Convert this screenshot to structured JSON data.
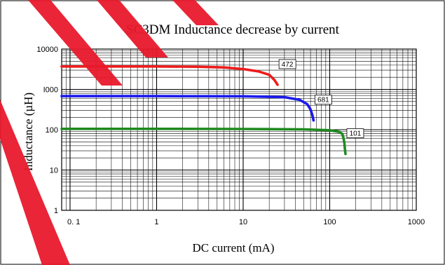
{
  "chart_data": {
    "type": "line",
    "title": "SC3DM Inductance decrease by current",
    "xlabel": "DC current (mA)",
    "ylabel": "Inductance (µH)",
    "x_scale": "log",
    "y_scale": "log",
    "xlim": [
      0.08,
      1000
    ],
    "ylim": [
      1,
      10000
    ],
    "x_ticks": [
      {
        "value": 0.1,
        "label": "0. 1"
      },
      {
        "value": 1,
        "label": "1"
      },
      {
        "value": 10,
        "label": "10"
      },
      {
        "value": 100,
        "label": "100"
      },
      {
        "value": 1000,
        "label": "1000"
      }
    ],
    "y_ticks": [
      {
        "value": 1,
        "label": "1"
      },
      {
        "value": 10,
        "label": "10"
      },
      {
        "value": 100,
        "label": "100"
      },
      {
        "value": 1000,
        "label": "I000"
      },
      {
        "value": 10000,
        "label": "10000"
      }
    ],
    "grid": true,
    "series": [
      {
        "name": "472",
        "color": "#ee1c1c",
        "x": [
          0.08,
          1,
          3,
          6,
          10,
          15,
          20,
          23,
          25
        ],
        "y": [
          3700,
          3700,
          3650,
          3500,
          3200,
          2800,
          2300,
          1700,
          1300
        ]
      },
      {
        "name": "681",
        "color": "#1a1aee",
        "x": [
          0.08,
          1,
          10,
          30,
          45,
          55,
          60,
          63,
          65
        ],
        "y": [
          680,
          680,
          675,
          640,
          550,
          430,
          320,
          230,
          170
        ]
      },
      {
        "name": "101",
        "color": "#1f8a1f",
        "x": [
          0.08,
          1,
          10,
          50,
          100,
          130,
          140,
          145,
          148,
          150,
          152
        ],
        "y": [
          105,
          105,
          104,
          102,
          97,
          88,
          78,
          60,
          45,
          33,
          25
        ]
      }
    ]
  }
}
